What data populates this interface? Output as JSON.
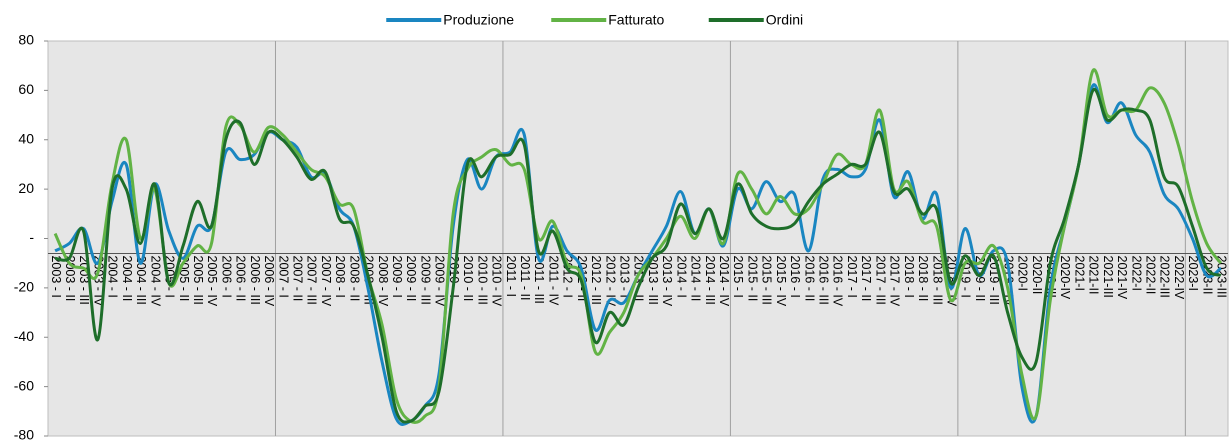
{
  "chart_data": {
    "type": "line",
    "categories": [
      "2003 - I",
      "2003 - II",
      "2003 - III",
      "2003 - IV",
      "2004 - I",
      "2004 - II",
      "2004 - III",
      "2004 - IV",
      "2005 - I",
      "2005 - II",
      "2005 - III",
      "2005 - IV",
      "2006 - I",
      "2006 - II",
      "2006 - III",
      "2006 - IV",
      "2007 - I",
      "2007 - II",
      "2007 - III",
      "2007 - IV",
      "2008 - I",
      "2008 - II",
      "2008 - III",
      "2008 - IV",
      "2009 - I",
      "2009 - II",
      "2009 - III",
      "2009 - IV",
      "2010 - I",
      "2010 - II",
      "2010 - III",
      "2010 - IV",
      "2011 - I",
      "2011 - II",
      "2011 - III",
      "2011 - IV",
      "2012 - I",
      "2012 - II",
      "2012 - III",
      "2012 - IV",
      "2013 - I",
      "2013 - II",
      "2013 - III",
      "2013 - IV",
      "2014 - I",
      "2014 - II",
      "2014 - III",
      "2014 - IV",
      "2015 - I",
      "2015 - II",
      "2015 - III",
      "2015 - IV",
      "2016 - I",
      "2016 - II",
      "2016 - III",
      "2016 - IV",
      "2017 - I",
      "2017 - II",
      "2017 - III",
      "2017 - IV",
      "2018 - I",
      "2018 - II",
      "2018 - III",
      "2018 - IV",
      "2019 - I",
      "2019 - II",
      "2019 - III",
      "2019 - IV",
      "2020-I",
      "2020-II",
      "2020-III",
      "2020-IV",
      "2021-I",
      "2021-II",
      "2021-III",
      "2021-IV",
      "2022-I",
      "2022-II",
      "2022-III",
      "2022-IV",
      "2023-I",
      "2023-II",
      "2023-III"
    ],
    "series": [
      {
        "name": "Produzione",
        "color": "#1a86c1",
        "values": [
          -5,
          -2,
          4,
          -10,
          15,
          30,
          -10,
          22,
          3,
          -8,
          5,
          5,
          35,
          32,
          34,
          43,
          40,
          37,
          25,
          26,
          12,
          5,
          -20,
          -50,
          -73,
          -74,
          -68,
          -55,
          5,
          32,
          20,
          33,
          35,
          42,
          -8,
          5,
          -5,
          -12,
          -37,
          -25,
          -26,
          -15,
          -5,
          5,
          19,
          2,
          12,
          -3,
          20,
          12,
          23,
          15,
          18,
          -5,
          24,
          28,
          25,
          28,
          48,
          17,
          27,
          8,
          18,
          -20,
          4,
          -15,
          -5,
          -10,
          -60,
          -72,
          -20,
          5,
          30,
          62,
          47,
          55,
          42,
          35,
          18,
          12,
          0,
          -15,
          -12
        ]
      },
      {
        "name": "Fatturato",
        "color": "#62b345",
        "values": [
          2,
          -10,
          -12,
          -14,
          22,
          40,
          0,
          20,
          -18,
          -10,
          -3,
          -2,
          45,
          46,
          35,
          45,
          42,
          35,
          28,
          25,
          14,
          12,
          -15,
          -35,
          -65,
          -74,
          -72,
          -60,
          10,
          28,
          33,
          36,
          30,
          28,
          0,
          7,
          -10,
          -15,
          -46,
          -38,
          -30,
          -15,
          -8,
          0,
          9,
          0,
          12,
          -2,
          26,
          20,
          10,
          17,
          10,
          12,
          22,
          34,
          30,
          30,
          52,
          20,
          23,
          7,
          5,
          -25,
          -10,
          -10,
          -3,
          -20,
          -55,
          -72,
          -25,
          5,
          30,
          68,
          50,
          52,
          52,
          61,
          55,
          38,
          15,
          -2,
          -10
        ]
      },
      {
        "name": "Ordini",
        "color": "#1e6e2a",
        "values": [
          -8,
          -8,
          3,
          -41,
          20,
          20,
          -2,
          22,
          -18,
          -3,
          15,
          5,
          40,
          47,
          30,
          43,
          40,
          33,
          24,
          27,
          8,
          5,
          -15,
          -40,
          -70,
          -74,
          -68,
          -62,
          -20,
          30,
          25,
          33,
          34,
          38,
          -5,
          3,
          -12,
          -17,
          -42,
          -30,
          -35,
          -20,
          -8,
          -3,
          14,
          2,
          12,
          0,
          22,
          10,
          5,
          4,
          6,
          15,
          22,
          26,
          30,
          30,
          43,
          19,
          20,
          10,
          12,
          -18,
          -7,
          -15,
          -7,
          -30,
          -48,
          -50,
          -10,
          8,
          30,
          60,
          48,
          52,
          52,
          48,
          25,
          21,
          5,
          -12,
          -15
        ]
      }
    ],
    "ylim": [
      -80,
      80
    ],
    "yticks": [
      -80,
      -60,
      -40,
      -20,
      {
        "value": 0,
        "label": "-"
      },
      20,
      40,
      60,
      80
    ]
  }
}
